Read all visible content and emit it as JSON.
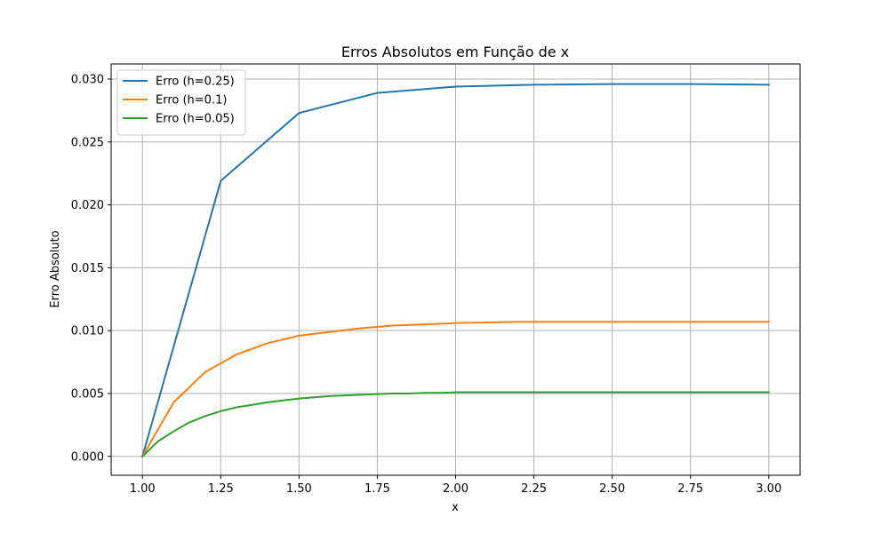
{
  "chart_data": {
    "type": "line",
    "title": "Erros Absolutos em Função de x",
    "xlabel": "x",
    "ylabel": "Erro Absoluto",
    "xlim": [
      0.9,
      3.1
    ],
    "ylim": [
      -0.0015,
      0.0312
    ],
    "xticks": [
      1.0,
      1.25,
      1.5,
      1.75,
      2.0,
      2.25,
      2.5,
      2.75,
      3.0
    ],
    "xtick_labels": [
      "1.00",
      "1.25",
      "1.50",
      "1.75",
      "2.00",
      "2.25",
      "2.50",
      "2.75",
      "3.00"
    ],
    "yticks": [
      0.0,
      0.005,
      0.01,
      0.015,
      0.02,
      0.025,
      0.03
    ],
    "ytick_labels": [
      "0.000",
      "0.005",
      "0.010",
      "0.015",
      "0.020",
      "0.025",
      "0.030"
    ],
    "grid": true,
    "legend_position": "top-left",
    "series": [
      {
        "name": "Erro (h=0.25)",
        "color": "#1f77b4",
        "x": [
          1.0,
          1.25,
          1.5,
          1.75,
          2.0,
          2.25,
          2.5,
          2.75,
          3.0
        ],
        "y": [
          0.0,
          0.0219,
          0.0273,
          0.0289,
          0.0294,
          0.02955,
          0.0296,
          0.0296,
          0.02955
        ]
      },
      {
        "name": "Erro (h=0.1)",
        "color": "#ff7f0e",
        "x": [
          1.0,
          1.1,
          1.2,
          1.3,
          1.4,
          1.5,
          1.6,
          1.7,
          1.8,
          1.9,
          2.0,
          2.1,
          2.2,
          2.3,
          2.4,
          2.5,
          2.6,
          2.7,
          2.8,
          2.9,
          3.0
        ],
        "y": [
          0.0,
          0.0043,
          0.0067,
          0.0081,
          0.009,
          0.0096,
          0.0099,
          0.0102,
          0.0104,
          0.0105,
          0.0106,
          0.01065,
          0.0107,
          0.0107,
          0.0107,
          0.0107,
          0.0107,
          0.0107,
          0.0107,
          0.0107,
          0.0107
        ]
      },
      {
        "name": "Erro (h=0.05)",
        "color": "#2ca02c",
        "x": [
          1.0,
          1.05,
          1.1,
          1.15,
          1.2,
          1.25,
          1.3,
          1.35,
          1.4,
          1.45,
          1.5,
          1.55,
          1.6,
          1.65,
          1.7,
          1.75,
          1.8,
          1.85,
          1.9,
          1.95,
          2.0,
          2.05,
          2.1,
          2.15,
          2.2,
          2.25,
          2.3,
          2.35,
          2.4,
          2.45,
          2.5,
          2.55,
          2.6,
          2.65,
          2.7,
          2.75,
          2.8,
          2.85,
          2.9,
          2.95,
          3.0
        ],
        "y": [
          0.0,
          0.0012,
          0.002,
          0.0027,
          0.0032,
          0.0036,
          0.0039,
          0.0041,
          0.0043,
          0.00445,
          0.0046,
          0.0047,
          0.0048,
          0.00485,
          0.0049,
          0.00495,
          0.005,
          0.005,
          0.00505,
          0.00505,
          0.0051,
          0.0051,
          0.0051,
          0.0051,
          0.0051,
          0.0051,
          0.0051,
          0.0051,
          0.0051,
          0.0051,
          0.0051,
          0.0051,
          0.0051,
          0.0051,
          0.0051,
          0.0051,
          0.0051,
          0.0051,
          0.0051,
          0.0051,
          0.0051
        ]
      }
    ]
  }
}
